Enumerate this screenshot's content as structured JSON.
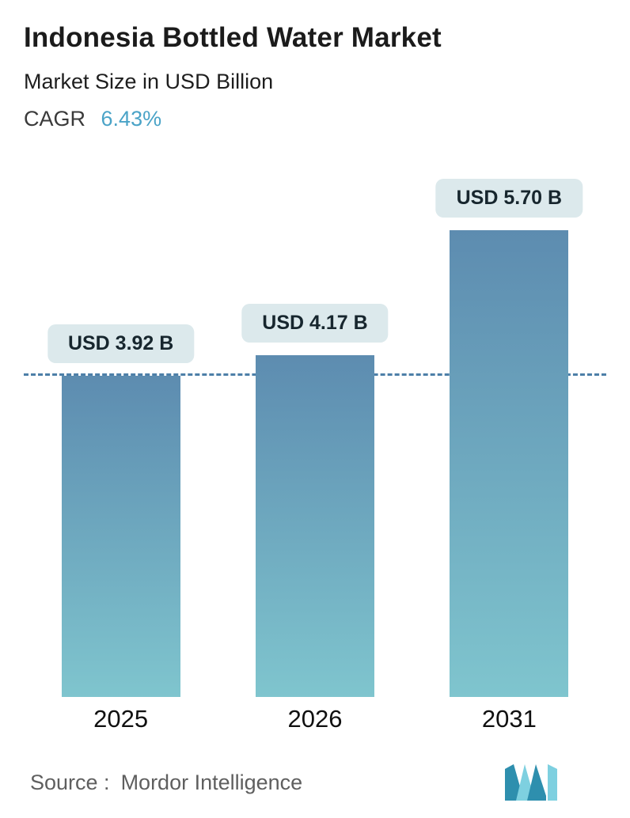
{
  "header": {
    "title": "Indonesia Bottled Water Market",
    "subtitle": "Market Size in USD Billion",
    "cagr_label": "CAGR",
    "cagr_value": "6.43%"
  },
  "chart_data": {
    "type": "bar",
    "categories": [
      "2025",
      "2026",
      "2031"
    ],
    "values": [
      3.92,
      4.17,
      5.7
    ],
    "value_labels": [
      "USD 3.92 B",
      "USD 4.17 B",
      "USD 5.70 B"
    ],
    "title": "Indonesia Bottled Water Market",
    "subtitle": "Market Size in USD Billion",
    "xlabel": "",
    "ylabel": "Market Size in USD Billion",
    "ylim": [
      0,
      5.7
    ],
    "reference_line_value": 3.92,
    "grid": false,
    "legend": "none",
    "colors": {
      "bar_top": "#5d8cb0",
      "bar_bottom": "#7fc5ce",
      "label_pill_bg": "#dce9ec",
      "dashed_line": "#4d7fa8",
      "cagr_accent": "#4aa3c7",
      "logo_dark": "#2e8fae",
      "logo_light": "#7ed0e0"
    }
  },
  "footer": {
    "source_label": "Source :",
    "source_value": "Mordor Intelligence",
    "logo_icon": "mordor-intelligence-logo-icon"
  }
}
